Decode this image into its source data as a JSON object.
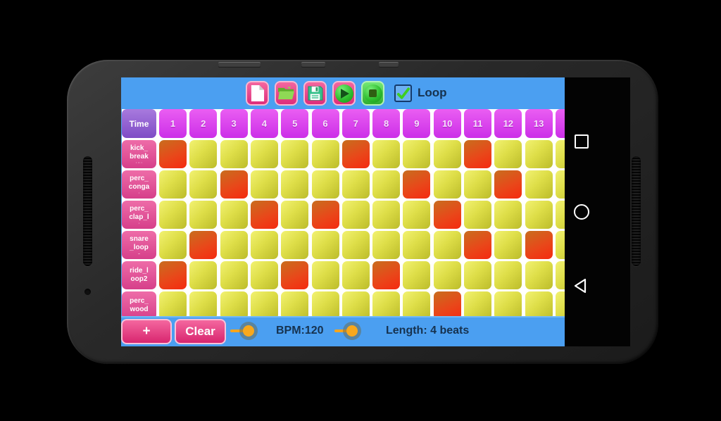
{
  "toolbar": {
    "buttons": [
      {
        "name": "new-file-button",
        "icon": "new-file-icon"
      },
      {
        "name": "open-file-button",
        "icon": "open-folder-icon"
      },
      {
        "name": "save-button",
        "icon": "save-floppy-icon"
      },
      {
        "name": "play-button",
        "icon": "play-icon"
      },
      {
        "name": "stop-button",
        "icon": "stop-icon"
      }
    ],
    "loop_label": "Loop",
    "loop_checked": true
  },
  "sequencer": {
    "time_header": "Time",
    "columns": [
      "1",
      "2",
      "3",
      "4",
      "5",
      "6",
      "7",
      "8",
      "9",
      "10",
      "11",
      "12",
      "13"
    ],
    "rows": [
      {
        "label_lines": [
          "kick_",
          "break"
        ],
        "sub": "· ·· ·",
        "active_steps": [
          1,
          7,
          11
        ]
      },
      {
        "label_lines": [
          "perc_",
          "conga"
        ],
        "sub": "·",
        "active_steps": [
          3,
          9,
          12
        ]
      },
      {
        "label_lines": [
          "perc_",
          "clap_l"
        ],
        "sub": "·",
        "active_steps": [
          4,
          6,
          10
        ]
      },
      {
        "label_lines": [
          "snare",
          "_loop"
        ],
        "sub": "–",
        "active_steps": [
          2,
          11,
          13
        ]
      },
      {
        "label_lines": [
          "ride_l",
          "oop2"
        ],
        "sub": "",
        "active_steps": [
          1,
          5,
          8
        ]
      },
      {
        "label_lines": [
          "perc_",
          "wood"
        ],
        "sub": "",
        "active_steps": [
          10
        ]
      }
    ]
  },
  "bottom_bar": {
    "add_label": "+",
    "clear_label": "Clear",
    "bpm_label": "BPM:120",
    "length_label": "Length: 4 beats"
  },
  "nav": {
    "buttons": [
      "recents-button",
      "home-button",
      "back-button"
    ]
  },
  "colors": {
    "app_blue": "#4b9ff1",
    "step_on": "#f52a10",
    "step_off": "#d8d83e",
    "header_magenta": "#d84fee",
    "time_purple": "#9363d2",
    "row_label_pink": "#e1559a",
    "button_pink": "#e83d85",
    "button_green": "#3ecf3e",
    "slider_orange": "#f5a51d",
    "text_navy": "#16324f",
    "check_green": "#3ecf1f"
  }
}
